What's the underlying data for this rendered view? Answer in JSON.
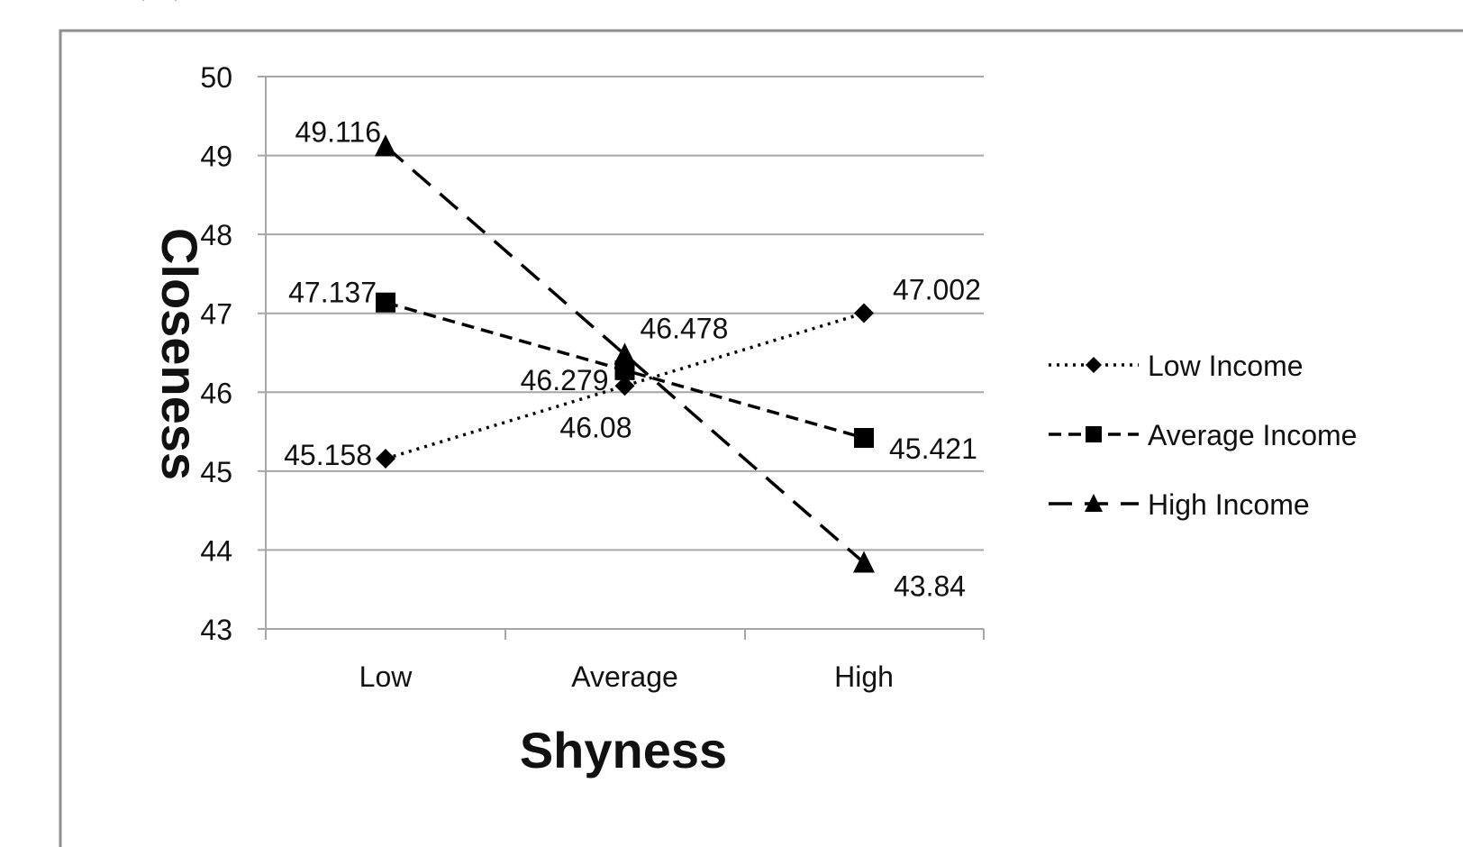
{
  "chart_data": {
    "type": "line",
    "title": "",
    "xlabel": "Shyness",
    "ylabel": "Closeness",
    "categories": [
      "Low",
      "Average",
      "High"
    ],
    "ylim": [
      43,
      50
    ],
    "yticks": [
      "43",
      "44",
      "45",
      "46",
      "47",
      "48",
      "49",
      "50"
    ],
    "grid": true,
    "legend_position": "right",
    "series": [
      {
        "name": "Low Income",
        "values": [
          45.158,
          46.08,
          47.002
        ],
        "labels": [
          "45.158",
          "46.08",
          "47.002"
        ],
        "marker": "diamond",
        "line_style": "dotted",
        "color": "#000000"
      },
      {
        "name": "Average Income",
        "values": [
          47.137,
          46.279,
          45.421
        ],
        "labels": [
          "47.137",
          "46.279",
          "45.421"
        ],
        "marker": "square",
        "line_style": "short-dash",
        "color": "#000000"
      },
      {
        "name": "High Income",
        "values": [
          49.116,
          46.478,
          43.84
        ],
        "labels": [
          "49.116",
          "46.478",
          "43.84"
        ],
        "marker": "triangle",
        "line_style": "long-dash",
        "color": "#000000"
      }
    ]
  }
}
